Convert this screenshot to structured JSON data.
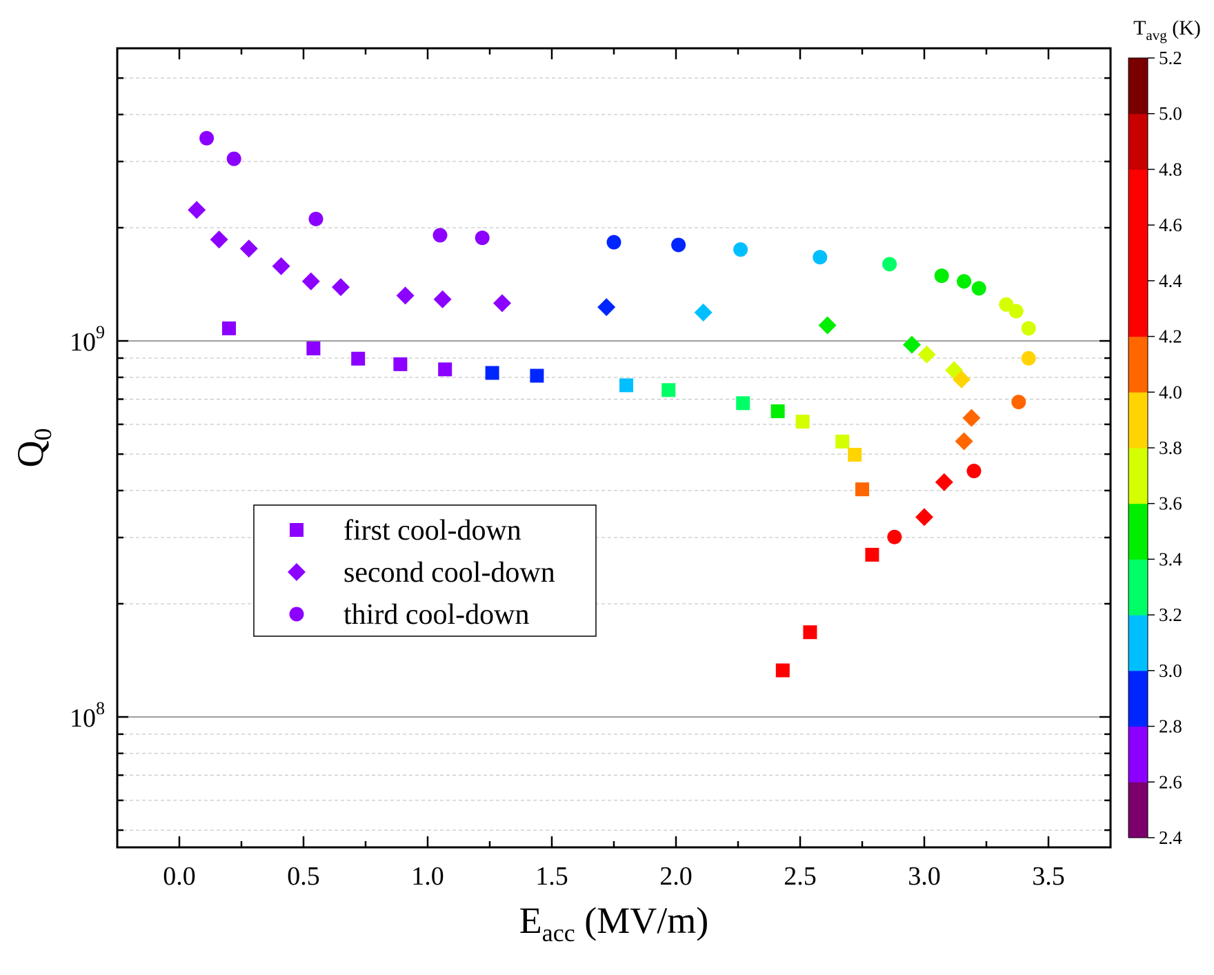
{
  "chart_data": {
    "type": "scatter",
    "xlabel": {
      "main": "E",
      "sub": "acc",
      "rest": " (MV/m)"
    },
    "ylabel": {
      "main": "Q",
      "sub": "0"
    },
    "xlim": [
      -0.25,
      3.75
    ],
    "ylim": [
      45000000,
      6000000000
    ],
    "y_scale": "log",
    "x_ticks": [
      0.0,
      0.5,
      1.0,
      1.5,
      2.0,
      2.5,
      3.0,
      3.5
    ],
    "x_tick_labels": [
      "0.0",
      "0.5",
      "1.0",
      "1.5",
      "2.0",
      "2.5",
      "3.0",
      "3.5"
    ],
    "y_major_ticks": [
      100000000,
      1000000000
    ],
    "y_tick_labels": [
      {
        "base": "10",
        "exp": "8"
      },
      {
        "base": "10",
        "exp": "9"
      }
    ],
    "grid": "horizontal major solid, minor dashed",
    "legend_position": "center-left",
    "colorbar": {
      "title_main": "T",
      "title_sub": "avg",
      "title_rest": " (K)",
      "min": 2.4,
      "max": 5.2,
      "tick_values": [
        2.4,
        2.6,
        2.8,
        3.0,
        3.2,
        3.4,
        3.6,
        3.8,
        4.0,
        4.2,
        4.4,
        4.6,
        4.8,
        5.0,
        5.2
      ],
      "tick_labels": [
        "2.4",
        "2.6",
        "2.8",
        "3.0",
        "3.2",
        "3.4",
        "3.6",
        "3.8",
        "4.0",
        "4.2",
        "4.4",
        "4.6",
        "4.8",
        "5.0",
        "5.2"
      ],
      "colors": [
        "#7b006b",
        "#8b00ff",
        "#0026ff",
        "#00bfff",
        "#00ff66",
        "#00ee00",
        "#d4ff00",
        "#ffd400",
        "#ff6600",
        "#ff0000",
        "#ff0000",
        "#ff0000",
        "#c80000",
        "#7a0000"
      ]
    },
    "series": [
      {
        "name": "first cool-down",
        "marker": "square",
        "points": [
          {
            "x": 0.2,
            "y": 1080000000,
            "color": "#8b00ff"
          },
          {
            "x": 0.54,
            "y": 955000000,
            "color": "#8b00ff"
          },
          {
            "x": 0.72,
            "y": 897000000,
            "color": "#8b00ff"
          },
          {
            "x": 0.89,
            "y": 867000000,
            "color": "#8b00ff"
          },
          {
            "x": 1.07,
            "y": 840000000,
            "color": "#8b00ff"
          },
          {
            "x": 1.26,
            "y": 822000000,
            "color": "#0026ff"
          },
          {
            "x": 1.44,
            "y": 808000000,
            "color": "#0026ff"
          },
          {
            "x": 1.8,
            "y": 762000000,
            "color": "#00bfff"
          },
          {
            "x": 1.97,
            "y": 740000000,
            "color": "#00ff66"
          },
          {
            "x": 2.27,
            "y": 683000000,
            "color": "#00ff66"
          },
          {
            "x": 2.41,
            "y": 650000000,
            "color": "#00ee00"
          },
          {
            "x": 2.51,
            "y": 610000000,
            "color": "#d4ff00"
          },
          {
            "x": 2.67,
            "y": 540000000,
            "color": "#d4ff00"
          },
          {
            "x": 2.72,
            "y": 498000000,
            "color": "#ffd400"
          },
          {
            "x": 2.75,
            "y": 403000000,
            "color": "#ff6600"
          },
          {
            "x": 2.79,
            "y": 270000000,
            "color": "#ff0000"
          },
          {
            "x": 2.54,
            "y": 168000000,
            "color": "#ff0000"
          },
          {
            "x": 2.43,
            "y": 133000000,
            "color": "#ff0000"
          }
        ]
      },
      {
        "name": "second cool-down",
        "marker": "diamond",
        "points": [
          {
            "x": 0.07,
            "y": 2230000000,
            "color": "#8b00ff"
          },
          {
            "x": 0.16,
            "y": 1860000000,
            "color": "#8b00ff"
          },
          {
            "x": 0.28,
            "y": 1760000000,
            "color": "#8b00ff"
          },
          {
            "x": 0.41,
            "y": 1580000000,
            "color": "#8b00ff"
          },
          {
            "x": 0.53,
            "y": 1440000000,
            "color": "#8b00ff"
          },
          {
            "x": 0.65,
            "y": 1390000000,
            "color": "#8b00ff"
          },
          {
            "x": 0.91,
            "y": 1320000000,
            "color": "#8b00ff"
          },
          {
            "x": 1.06,
            "y": 1290000000,
            "color": "#8b00ff"
          },
          {
            "x": 1.3,
            "y": 1260000000,
            "color": "#8b00ff"
          },
          {
            "x": 1.72,
            "y": 1230000000,
            "color": "#0026ff"
          },
          {
            "x": 2.11,
            "y": 1190000000,
            "color": "#00bfff"
          },
          {
            "x": 2.61,
            "y": 1100000000,
            "color": "#00ee00"
          },
          {
            "x": 2.95,
            "y": 977000000,
            "color": "#00ee00"
          },
          {
            "x": 3.01,
            "y": 920000000,
            "color": "#d4ff00"
          },
          {
            "x": 3.12,
            "y": 836000000,
            "color": "#d4ff00"
          },
          {
            "x": 3.15,
            "y": 790000000,
            "color": "#ffd400"
          },
          {
            "x": 3.19,
            "y": 624000000,
            "color": "#ff6600"
          },
          {
            "x": 3.16,
            "y": 541000000,
            "color": "#ff6600"
          },
          {
            "x": 3.08,
            "y": 421000000,
            "color": "#ff0000"
          },
          {
            "x": 3.0,
            "y": 340000000,
            "color": "#ff0000"
          }
        ]
      },
      {
        "name": "third cool-down",
        "marker": "circle",
        "points": [
          {
            "x": 0.11,
            "y": 3460000000,
            "color": "#8b00ff"
          },
          {
            "x": 0.22,
            "y": 3050000000,
            "color": "#8b00ff"
          },
          {
            "x": 0.55,
            "y": 2110000000,
            "color": "#8b00ff"
          },
          {
            "x": 1.05,
            "y": 1910000000,
            "color": "#8b00ff"
          },
          {
            "x": 1.22,
            "y": 1880000000,
            "color": "#8b00ff"
          },
          {
            "x": 1.75,
            "y": 1830000000,
            "color": "#0026ff"
          },
          {
            "x": 2.01,
            "y": 1800000000,
            "color": "#0026ff"
          },
          {
            "x": 2.26,
            "y": 1750000000,
            "color": "#00bfff"
          },
          {
            "x": 2.58,
            "y": 1670000000,
            "color": "#00bfff"
          },
          {
            "x": 2.86,
            "y": 1600000000,
            "color": "#00ff66"
          },
          {
            "x": 3.07,
            "y": 1490000000,
            "color": "#00ee00"
          },
          {
            "x": 3.16,
            "y": 1440000000,
            "color": "#00ee00"
          },
          {
            "x": 3.22,
            "y": 1380000000,
            "color": "#00ee00"
          },
          {
            "x": 3.33,
            "y": 1250000000,
            "color": "#d4ff00"
          },
          {
            "x": 3.37,
            "y": 1200000000,
            "color": "#d4ff00"
          },
          {
            "x": 3.42,
            "y": 1080000000,
            "color": "#d4ff00"
          },
          {
            "x": 3.42,
            "y": 899000000,
            "color": "#ffd400"
          },
          {
            "x": 3.38,
            "y": 688000000,
            "color": "#ff6600"
          },
          {
            "x": 3.2,
            "y": 451000000,
            "color": "#ff0000"
          },
          {
            "x": 2.88,
            "y": 301000000,
            "color": "#ff0000"
          }
        ]
      }
    ]
  }
}
